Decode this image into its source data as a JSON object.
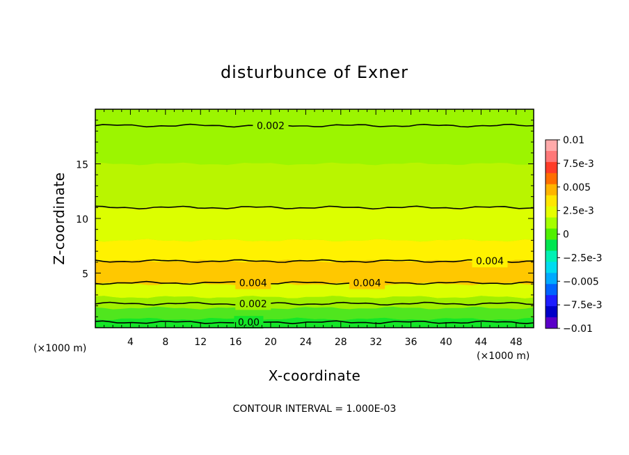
{
  "chart_data": {
    "type": "heatmap",
    "title": "disturbunce of Exner",
    "xlabel": "X-coordinate",
    "ylabel": "Z-coordinate",
    "x_unit": "(×1000 m)",
    "y_unit": "(×1000 m)",
    "xlim": [
      0,
      50
    ],
    "ylim": [
      0,
      20
    ],
    "x_ticks": [
      4,
      8,
      12,
      16,
      20,
      24,
      28,
      32,
      36,
      40,
      44,
      48
    ],
    "y_ticks": [
      5,
      10,
      15
    ],
    "footer": "CONTOUR INTERVAL = 1.000E-03",
    "colorbar": {
      "labels": [
        "0.01",
        "7.5e-3",
        "0.005",
        "2.5e-3",
        "0",
        "−2.5e-3",
        "−0.005",
        "−7.5e-3",
        "−0.01"
      ],
      "colors": [
        "#ffaaaa",
        "#ff7878",
        "#ff3c28",
        "#ff6e00",
        "#ffb400",
        "#ffe600",
        "#e6ff00",
        "#a5ff00",
        "#50f000",
        "#00e650",
        "#00f0b4",
        "#00dcf0",
        "#00aaff",
        "#0064ff",
        "#1e1eff",
        "#0000c8",
        "#5a00c8"
      ]
    },
    "bands": [
      {
        "z": [
          19.5,
          15.0
        ],
        "value": 0.0021,
        "color": "#9cf500"
      },
      {
        "z": [
          15.0,
          11.0
        ],
        "value": 0.0025,
        "color": "#b9f500"
      },
      {
        "z": [
          11.0,
          8.0
        ],
        "value": 0.0031,
        "color": "#dcff00"
      },
      {
        "z": [
          8.0,
          6.1
        ],
        "value": 0.0035,
        "color": "#fff200"
      },
      {
        "z": [
          6.1,
          4.0
        ],
        "value": 0.0042,
        "color": "#ffc800"
      },
      {
        "z": [
          4.0,
          2.8
        ],
        "value": 0.0032,
        "color": "#dcff00"
      },
      {
        "z": [
          2.8,
          1.8
        ],
        "value": 0.0022,
        "color": "#a0f000"
      },
      {
        "z": [
          1.8,
          0.8
        ],
        "value": 0.0011,
        "color": "#50e61e"
      },
      {
        "z": [
          0.8,
          0.0
        ],
        "value": 0.0003,
        "color": "#14e628"
      }
    ],
    "contours": [
      {
        "z": 18.5,
        "label": "0.002",
        "label_x": 20.0
      },
      {
        "z": 11.0,
        "label": "",
        "label_x": null
      },
      {
        "z": 6.1,
        "label": "0.004",
        "label_x": 45.0
      },
      {
        "z": 4.1,
        "label": "0.004",
        "label_x": 18.0
      },
      {
        "z": 4.1,
        "label": "0.004",
        "label_x": 31.0
      },
      {
        "z": 2.2,
        "label": "0.002",
        "label_x": 18.0
      },
      {
        "z": 0.5,
        "label": "0.00",
        "label_x": 17.5
      }
    ]
  }
}
